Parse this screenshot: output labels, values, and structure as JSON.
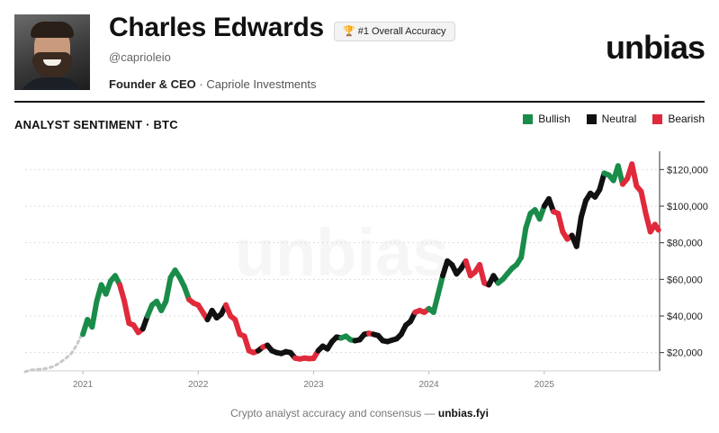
{
  "profile": {
    "name": "Charles Edwards",
    "badge": "#1 Overall Accuracy",
    "handle": "@caprioleio",
    "role": "Founder & CEO",
    "separator": "·",
    "company": "Capriole Investments"
  },
  "brand": {
    "logo_text": "unbias",
    "watermark": "unbias"
  },
  "footer": {
    "text": "Crypto analyst accuracy and consensus —",
    "link": "unbias.fyi"
  },
  "colors": {
    "bullish": "#1a8c4a",
    "neutral": "#111111",
    "bearish": "#e02a3b",
    "pre_coverage": "#c8c8c8",
    "grid": "#dddddd",
    "axis": "#333333"
  },
  "chart_data": {
    "type": "line",
    "title": "ANALYST SENTIMENT · BTC",
    "legend": [
      {
        "key": "bullish",
        "label": "Bullish"
      },
      {
        "key": "neutral",
        "label": "Neutral"
      },
      {
        "key": "bearish",
        "label": "Bearish"
      }
    ],
    "legend_position": "top-right",
    "x_ticks": [
      "2021",
      "2022",
      "2023",
      "2024",
      "2025"
    ],
    "x_tick_values": [
      2021.0,
      2022.0,
      2023.0,
      2024.0,
      2025.0
    ],
    "y_ticks": [
      20000,
      40000,
      60000,
      80000,
      100000,
      120000
    ],
    "y_tick_labels": [
      "$20,000",
      "$40,000",
      "$60,000",
      "$80,000",
      "$100,000",
      "$120,000"
    ],
    "xlim": [
      2020.5,
      2026.0
    ],
    "ylim": [
      10000,
      130000
    ],
    "y_axis_side": "right",
    "grid": true,
    "pre_coverage": [
      [
        2020.5,
        9500
      ],
      [
        2020.55,
        10500
      ],
      [
        2020.6,
        10800
      ],
      [
        2020.65,
        11000
      ],
      [
        2020.7,
        11500
      ],
      [
        2020.75,
        12500
      ],
      [
        2020.8,
        14500
      ],
      [
        2020.85,
        16800
      ],
      [
        2020.9,
        19500
      ],
      [
        2020.95,
        24500
      ],
      [
        2020.99,
        30000
      ]
    ],
    "series": [
      {
        "x": 2021.0,
        "y": 30000,
        "sentiment": "bullish"
      },
      {
        "x": 2021.04,
        "y": 38000,
        "sentiment": "bullish"
      },
      {
        "x": 2021.08,
        "y": 34000,
        "sentiment": "bullish"
      },
      {
        "x": 2021.12,
        "y": 48000,
        "sentiment": "bullish"
      },
      {
        "x": 2021.16,
        "y": 57000,
        "sentiment": "bullish"
      },
      {
        "x": 2021.2,
        "y": 52000,
        "sentiment": "bullish"
      },
      {
        "x": 2021.24,
        "y": 59000,
        "sentiment": "bullish"
      },
      {
        "x": 2021.28,
        "y": 62000,
        "sentiment": "bullish"
      },
      {
        "x": 2021.32,
        "y": 57000,
        "sentiment": "bearish"
      },
      {
        "x": 2021.36,
        "y": 48000,
        "sentiment": "bearish"
      },
      {
        "x": 2021.4,
        "y": 36000,
        "sentiment": "bearish"
      },
      {
        "x": 2021.44,
        "y": 35000,
        "sentiment": "bearish"
      },
      {
        "x": 2021.48,
        "y": 31000,
        "sentiment": "bearish"
      },
      {
        "x": 2021.52,
        "y": 33000,
        "sentiment": "neutral"
      },
      {
        "x": 2021.56,
        "y": 40000,
        "sentiment": "bullish"
      },
      {
        "x": 2021.6,
        "y": 46000,
        "sentiment": "bullish"
      },
      {
        "x": 2021.64,
        "y": 48000,
        "sentiment": "bullish"
      },
      {
        "x": 2021.68,
        "y": 43000,
        "sentiment": "bullish"
      },
      {
        "x": 2021.72,
        "y": 48000,
        "sentiment": "bullish"
      },
      {
        "x": 2021.76,
        "y": 61000,
        "sentiment": "bullish"
      },
      {
        "x": 2021.8,
        "y": 65000,
        "sentiment": "bullish"
      },
      {
        "x": 2021.84,
        "y": 61000,
        "sentiment": "bullish"
      },
      {
        "x": 2021.88,
        "y": 56000,
        "sentiment": "bullish"
      },
      {
        "x": 2021.92,
        "y": 49000,
        "sentiment": "bearish"
      },
      {
        "x": 2021.96,
        "y": 47000,
        "sentiment": "bearish"
      },
      {
        "x": 2022.0,
        "y": 46000,
        "sentiment": "bearish"
      },
      {
        "x": 2022.04,
        "y": 42000,
        "sentiment": "bearish"
      },
      {
        "x": 2022.08,
        "y": 38000,
        "sentiment": "neutral"
      },
      {
        "x": 2022.12,
        "y": 43000,
        "sentiment": "neutral"
      },
      {
        "x": 2022.16,
        "y": 39000,
        "sentiment": "neutral"
      },
      {
        "x": 2022.2,
        "y": 41000,
        "sentiment": "neutral"
      },
      {
        "x": 2022.24,
        "y": 46000,
        "sentiment": "bearish"
      },
      {
        "x": 2022.28,
        "y": 40000,
        "sentiment": "bearish"
      },
      {
        "x": 2022.32,
        "y": 38000,
        "sentiment": "bearish"
      },
      {
        "x": 2022.36,
        "y": 30000,
        "sentiment": "bearish"
      },
      {
        "x": 2022.4,
        "y": 29000,
        "sentiment": "bearish"
      },
      {
        "x": 2022.44,
        "y": 21000,
        "sentiment": "bearish"
      },
      {
        "x": 2022.48,
        "y": 20000,
        "sentiment": "bearish"
      },
      {
        "x": 2022.52,
        "y": 21000,
        "sentiment": "neutral"
      },
      {
        "x": 2022.56,
        "y": 23000,
        "sentiment": "bearish"
      },
      {
        "x": 2022.6,
        "y": 24000,
        "sentiment": "neutral"
      },
      {
        "x": 2022.64,
        "y": 21000,
        "sentiment": "neutral"
      },
      {
        "x": 2022.68,
        "y": 20000,
        "sentiment": "neutral"
      },
      {
        "x": 2022.72,
        "y": 19500,
        "sentiment": "neutral"
      },
      {
        "x": 2022.76,
        "y": 20500,
        "sentiment": "neutral"
      },
      {
        "x": 2022.8,
        "y": 20000,
        "sentiment": "neutral"
      },
      {
        "x": 2022.84,
        "y": 17000,
        "sentiment": "bearish"
      },
      {
        "x": 2022.88,
        "y": 16500,
        "sentiment": "bearish"
      },
      {
        "x": 2022.92,
        "y": 17000,
        "sentiment": "bearish"
      },
      {
        "x": 2022.96,
        "y": 16700,
        "sentiment": "bearish"
      },
      {
        "x": 2023.0,
        "y": 16800,
        "sentiment": "bearish"
      },
      {
        "x": 2023.04,
        "y": 21000,
        "sentiment": "neutral"
      },
      {
        "x": 2023.08,
        "y": 23500,
        "sentiment": "neutral"
      },
      {
        "x": 2023.12,
        "y": 22000,
        "sentiment": "neutral"
      },
      {
        "x": 2023.16,
        "y": 26000,
        "sentiment": "neutral"
      },
      {
        "x": 2023.2,
        "y": 28500,
        "sentiment": "neutral"
      },
      {
        "x": 2023.24,
        "y": 28000,
        "sentiment": "bullish"
      },
      {
        "x": 2023.28,
        "y": 29000,
        "sentiment": "bullish"
      },
      {
        "x": 2023.32,
        "y": 27000,
        "sentiment": "bullish"
      },
      {
        "x": 2023.36,
        "y": 26500,
        "sentiment": "neutral"
      },
      {
        "x": 2023.4,
        "y": 27000,
        "sentiment": "neutral"
      },
      {
        "x": 2023.44,
        "y": 30000,
        "sentiment": "neutral"
      },
      {
        "x": 2023.48,
        "y": 30500,
        "sentiment": "bearish"
      },
      {
        "x": 2023.52,
        "y": 30000,
        "sentiment": "neutral"
      },
      {
        "x": 2023.56,
        "y": 29300,
        "sentiment": "neutral"
      },
      {
        "x": 2023.6,
        "y": 26500,
        "sentiment": "neutral"
      },
      {
        "x": 2023.64,
        "y": 26000,
        "sentiment": "neutral"
      },
      {
        "x": 2023.68,
        "y": 26800,
        "sentiment": "neutral"
      },
      {
        "x": 2023.72,
        "y": 27500,
        "sentiment": "neutral"
      },
      {
        "x": 2023.76,
        "y": 30000,
        "sentiment": "neutral"
      },
      {
        "x": 2023.8,
        "y": 35000,
        "sentiment": "neutral"
      },
      {
        "x": 2023.84,
        "y": 37000,
        "sentiment": "neutral"
      },
      {
        "x": 2023.88,
        "y": 42000,
        "sentiment": "bearish"
      },
      {
        "x": 2023.92,
        "y": 43000,
        "sentiment": "bearish"
      },
      {
        "x": 2023.96,
        "y": 42000,
        "sentiment": "bearish"
      },
      {
        "x": 2024.0,
        "y": 44000,
        "sentiment": "bullish"
      },
      {
        "x": 2024.04,
        "y": 42000,
        "sentiment": "bullish"
      },
      {
        "x": 2024.08,
        "y": 52000,
        "sentiment": "bullish"
      },
      {
        "x": 2024.12,
        "y": 62000,
        "sentiment": "neutral"
      },
      {
        "x": 2024.16,
        "y": 70000,
        "sentiment": "neutral"
      },
      {
        "x": 2024.2,
        "y": 68000,
        "sentiment": "neutral"
      },
      {
        "x": 2024.24,
        "y": 63000,
        "sentiment": "neutral"
      },
      {
        "x": 2024.28,
        "y": 66000,
        "sentiment": "neutral"
      },
      {
        "x": 2024.32,
        "y": 70000,
        "sentiment": "bearish"
      },
      {
        "x": 2024.36,
        "y": 62000,
        "sentiment": "bearish"
      },
      {
        "x": 2024.4,
        "y": 64000,
        "sentiment": "bearish"
      },
      {
        "x": 2024.44,
        "y": 68000,
        "sentiment": "bearish"
      },
      {
        "x": 2024.48,
        "y": 58000,
        "sentiment": "bearish"
      },
      {
        "x": 2024.52,
        "y": 57000,
        "sentiment": "neutral"
      },
      {
        "x": 2024.56,
        "y": 62000,
        "sentiment": "neutral"
      },
      {
        "x": 2024.6,
        "y": 58000,
        "sentiment": "bullish"
      },
      {
        "x": 2024.64,
        "y": 60000,
        "sentiment": "bullish"
      },
      {
        "x": 2024.68,
        "y": 63000,
        "sentiment": "bullish"
      },
      {
        "x": 2024.72,
        "y": 66000,
        "sentiment": "bullish"
      },
      {
        "x": 2024.76,
        "y": 68000,
        "sentiment": "bullish"
      },
      {
        "x": 2024.8,
        "y": 72000,
        "sentiment": "bullish"
      },
      {
        "x": 2024.84,
        "y": 88000,
        "sentiment": "bullish"
      },
      {
        "x": 2024.88,
        "y": 96000,
        "sentiment": "bullish"
      },
      {
        "x": 2024.92,
        "y": 98000,
        "sentiment": "bullish"
      },
      {
        "x": 2024.96,
        "y": 93000,
        "sentiment": "bullish"
      },
      {
        "x": 2025.0,
        "y": 100000,
        "sentiment": "neutral"
      },
      {
        "x": 2025.04,
        "y": 104000,
        "sentiment": "neutral"
      },
      {
        "x": 2025.08,
        "y": 97000,
        "sentiment": "bearish"
      },
      {
        "x": 2025.12,
        "y": 96000,
        "sentiment": "bearish"
      },
      {
        "x": 2025.16,
        "y": 86000,
        "sentiment": "bearish"
      },
      {
        "x": 2025.2,
        "y": 82000,
        "sentiment": "bearish"
      },
      {
        "x": 2025.24,
        "y": 84000,
        "sentiment": "neutral"
      },
      {
        "x": 2025.28,
        "y": 78000,
        "sentiment": "neutral"
      },
      {
        "x": 2025.32,
        "y": 94000,
        "sentiment": "neutral"
      },
      {
        "x": 2025.36,
        "y": 103000,
        "sentiment": "neutral"
      },
      {
        "x": 2025.4,
        "y": 107000,
        "sentiment": "neutral"
      },
      {
        "x": 2025.44,
        "y": 105000,
        "sentiment": "neutral"
      },
      {
        "x": 2025.48,
        "y": 109000,
        "sentiment": "neutral"
      },
      {
        "x": 2025.52,
        "y": 118000,
        "sentiment": "bullish"
      },
      {
        "x": 2025.56,
        "y": 117000,
        "sentiment": "bullish"
      },
      {
        "x": 2025.6,
        "y": 114000,
        "sentiment": "bullish"
      },
      {
        "x": 2025.64,
        "y": 122000,
        "sentiment": "bullish"
      },
      {
        "x": 2025.68,
        "y": 112000,
        "sentiment": "bearish"
      },
      {
        "x": 2025.72,
        "y": 115000,
        "sentiment": "bearish"
      },
      {
        "x": 2025.76,
        "y": 123000,
        "sentiment": "bearish"
      },
      {
        "x": 2025.8,
        "y": 111000,
        "sentiment": "bearish"
      },
      {
        "x": 2025.84,
        "y": 108000,
        "sentiment": "bearish"
      },
      {
        "x": 2025.88,
        "y": 96000,
        "sentiment": "bearish"
      },
      {
        "x": 2025.92,
        "y": 86000,
        "sentiment": "bearish"
      },
      {
        "x": 2025.96,
        "y": 90000,
        "sentiment": "bearish"
      },
      {
        "x": 2025.99,
        "y": 87000,
        "sentiment": "bearish"
      }
    ]
  }
}
